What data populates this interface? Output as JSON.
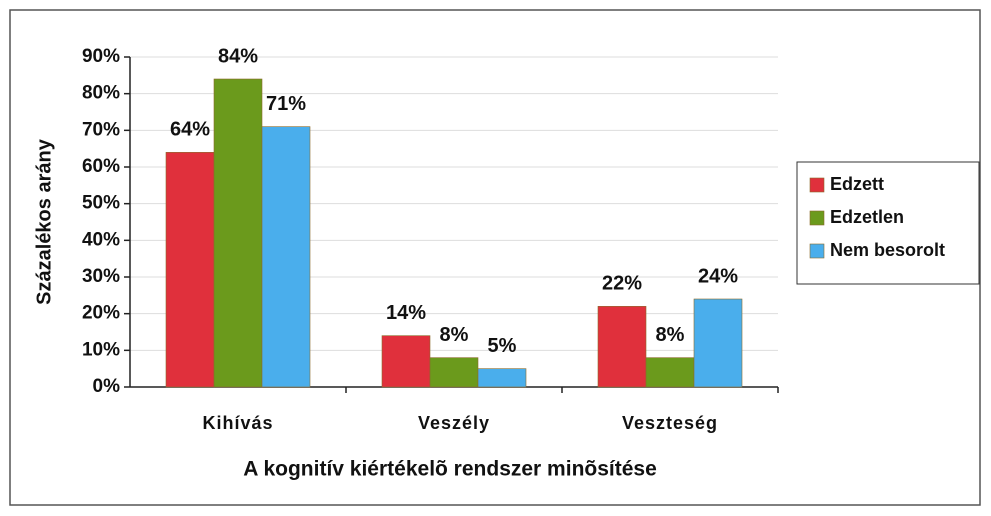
{
  "chart_data": {
    "type": "bar",
    "x_label": "A kognitív kiértékelõ rendszer minõsítése",
    "y_label": "Százalékos arány",
    "categories": [
      "Kihívás",
      "Veszély",
      "Veszteség"
    ],
    "series": [
      {
        "name": "Edzett",
        "color": "#e0303c",
        "values": [
          64,
          14,
          22
        ],
        "value_labels": [
          "64%",
          "14%",
          "22%"
        ]
      },
      {
        "name": "Edzetlen",
        "color": "#6b9a1c",
        "values": [
          84,
          8,
          8
        ],
        "value_labels": [
          "84%",
          "8%",
          "8%"
        ]
      },
      {
        "name": "Nem besorolt",
        "color": "#4aaeec",
        "values": [
          71,
          5,
          24
        ],
        "value_labels": [
          "71%",
          "5%",
          "24%"
        ]
      }
    ],
    "ylim": [
      0,
      90
    ],
    "yticks": [
      {
        "value": 0,
        "label": "0%"
      },
      {
        "value": 10,
        "label": "10%"
      },
      {
        "value": 20,
        "label": "20%"
      },
      {
        "value": 30,
        "label": "30%"
      },
      {
        "value": 40,
        "label": "40%"
      },
      {
        "value": 50,
        "label": "50%"
      },
      {
        "value": 60,
        "label": "60%"
      },
      {
        "value": 70,
        "label": "70%"
      },
      {
        "value": 80,
        "label": "80%"
      },
      {
        "value": 90,
        "label": "90%"
      }
    ],
    "grid": true,
    "legend": "right"
  }
}
